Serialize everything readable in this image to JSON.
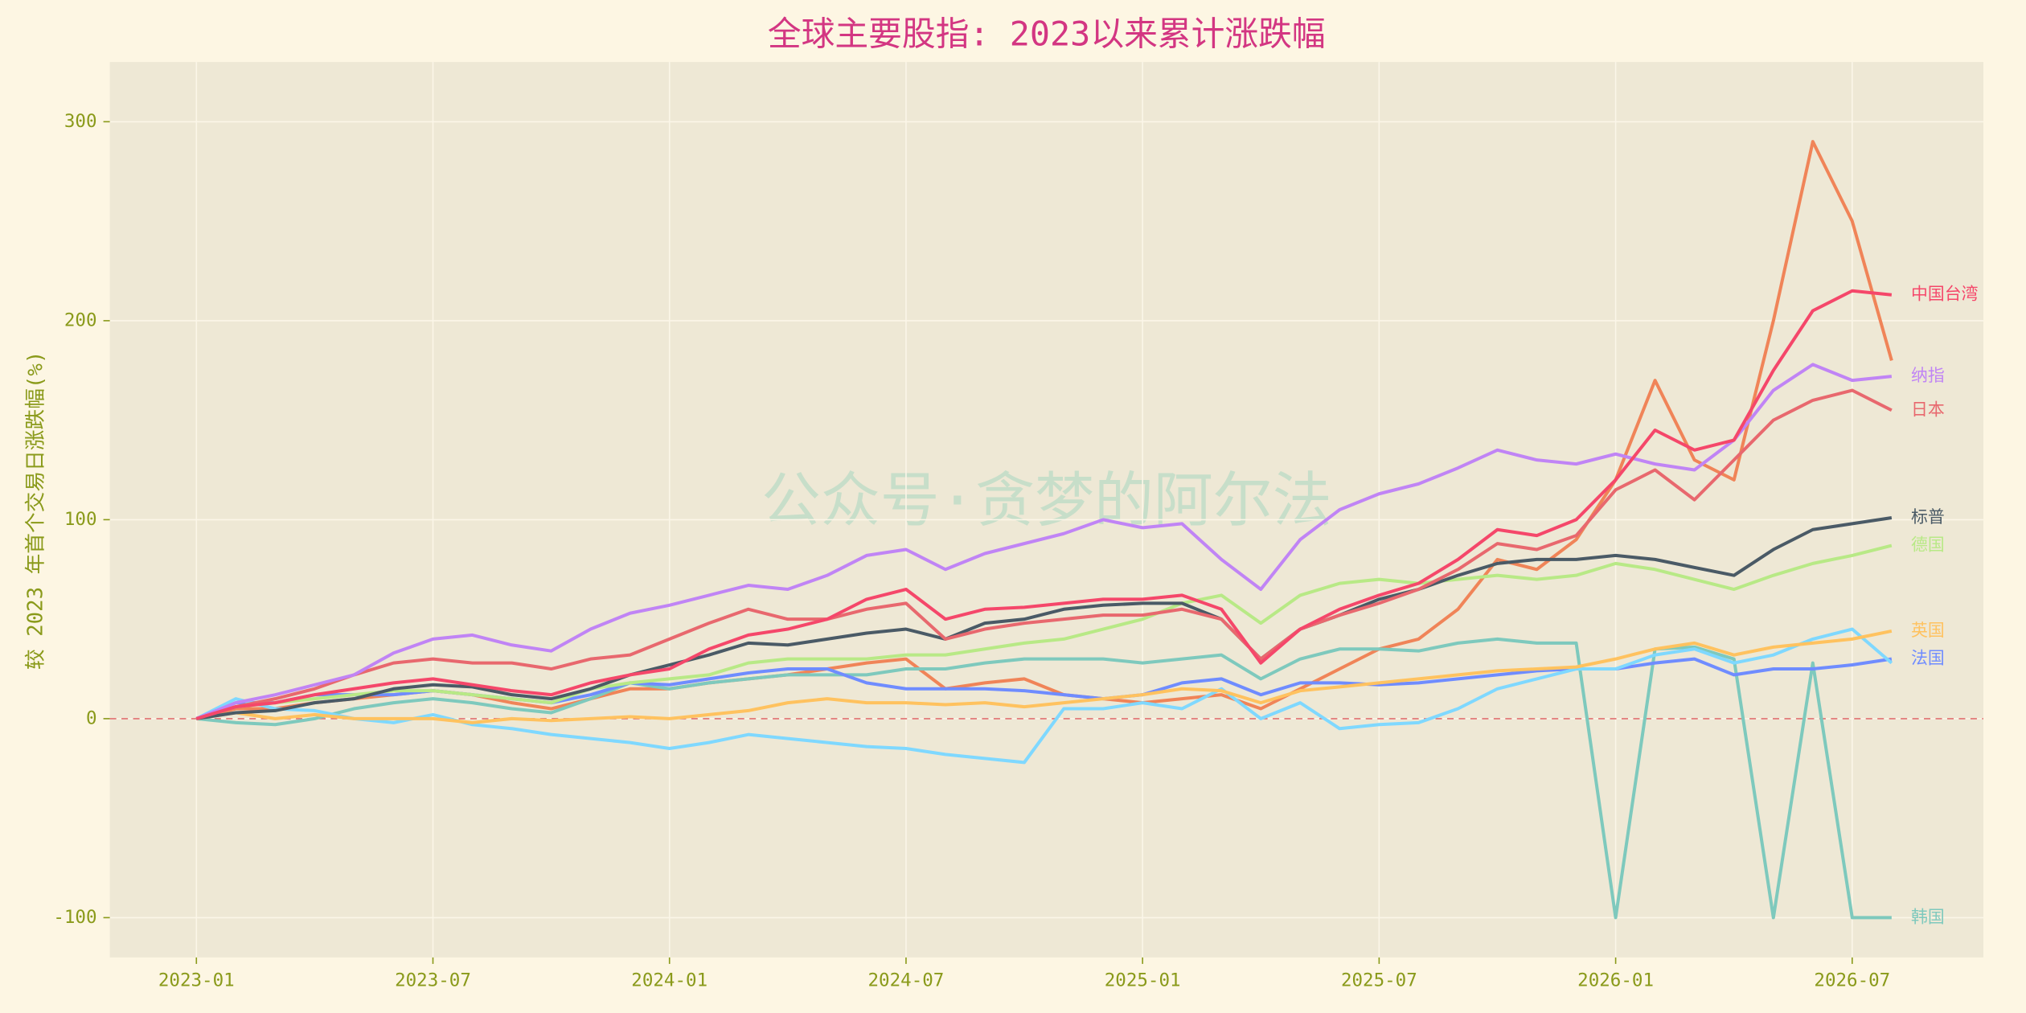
{
  "chart_data": {
    "type": "line",
    "title": "全球主要股指: 2023以来累计涨跌幅",
    "y_label": "较 2023 年首个交易日涨跌幅(%)",
    "watermark": "公众号·贪梦的阿尔法",
    "x": [
      "2023-01",
      "2023-02",
      "2023-03",
      "2023-04",
      "2023-05",
      "2023-06",
      "2023-07",
      "2023-08",
      "2023-09",
      "2023-10",
      "2023-11",
      "2023-12",
      "2024-01",
      "2024-02",
      "2024-03",
      "2024-04",
      "2024-05",
      "2024-06",
      "2024-07",
      "2024-08",
      "2024-09",
      "2024-10",
      "2024-11",
      "2024-12",
      "2025-01",
      "2025-02",
      "2025-03",
      "2025-04",
      "2025-05",
      "2025-06",
      "2025-07",
      "2025-08",
      "2025-09",
      "2025-10",
      "2025-11",
      "2025-12",
      "2026-01",
      "2026-02",
      "2026-03",
      "2026-04",
      "2026-05",
      "2026-06",
      "2026-07",
      "2026-08"
    ],
    "xticks": [
      "2023-01",
      "2023-07",
      "2024-01",
      "2024-07",
      "2025-01",
      "2025-07",
      "2026-01",
      "2026-07"
    ],
    "ylim": [
      -120,
      330
    ],
    "yticks": [
      -100,
      0,
      100,
      200,
      300
    ],
    "grid": true,
    "hline": 0,
    "series": [
      {
        "color": "#f08458",
        "values": [
          0,
          5,
          5,
          8,
          10,
          12,
          14,
          12,
          8,
          5,
          10,
          15,
          15,
          18,
          20,
          22,
          25,
          28,
          30,
          15,
          18,
          20,
          12,
          10,
          8,
          10,
          12,
          5,
          15,
          25,
          35,
          40,
          55,
          80,
          75,
          90,
          120,
          170,
          130,
          120,
          200,
          290,
          250,
          180
        ]
      },
      {
        "name": "韩国",
        "color": "#7ec9bd",
        "values": [
          0,
          -2,
          -3,
          0,
          5,
          8,
          10,
          8,
          5,
          3,
          10,
          18,
          15,
          18,
          20,
          22,
          22,
          22,
          25,
          25,
          28,
          30,
          30,
          30,
          28,
          30,
          32,
          20,
          30,
          35,
          35,
          34,
          38,
          40,
          38,
          38,
          -100,
          35,
          36,
          30,
          -100,
          28,
          -100,
          -100
        ]
      },
      {
        "name": "法国",
        "color": "#6f8cff",
        "values": [
          0,
          8,
          8,
          12,
          12,
          12,
          14,
          12,
          10,
          8,
          12,
          18,
          17,
          20,
          23,
          25,
          25,
          18,
          15,
          15,
          15,
          14,
          12,
          10,
          12,
          18,
          20,
          12,
          18,
          18,
          17,
          18,
          20,
          22,
          24,
          25,
          25,
          28,
          30,
          22,
          25,
          25,
          27,
          30
        ]
      },
      {
        "color": "#7fd8ff",
        "values": [
          0,
          10,
          5,
          4,
          0,
          -2,
          2,
          -3,
          -5,
          -8,
          -10,
          -12,
          -15,
          -12,
          -8,
          -10,
          -12,
          -14,
          -15,
          -18,
          -20,
          -22,
          5,
          5,
          8,
          5,
          15,
          0,
          8,
          -5,
          -3,
          -2,
          5,
          15,
          20,
          25,
          25,
          32,
          35,
          28,
          32,
          40,
          45,
          28
        ]
      },
      {
        "name": "英国",
        "color": "#ffc25f",
        "values": [
          0,
          3,
          0,
          2,
          0,
          0,
          0,
          -2,
          0,
          -1,
          0,
          1,
          0,
          2,
          4,
          8,
          10,
          8,
          8,
          7,
          8,
          6,
          8,
          10,
          12,
          15,
          14,
          8,
          14,
          16,
          18,
          20,
          22,
          24,
          25,
          26,
          30,
          35,
          38,
          32,
          36,
          38,
          40,
          44
        ]
      },
      {
        "name": "德国",
        "color": "#b8e986",
        "values": [
          0,
          6,
          8,
          10,
          12,
          14,
          14,
          12,
          10,
          8,
          15,
          18,
          20,
          22,
          28,
          30,
          30,
          30,
          32,
          32,
          35,
          38,
          40,
          45,
          50,
          58,
          62,
          48,
          62,
          68,
          70,
          68,
          70,
          72,
          70,
          72,
          78,
          75,
          70,
          65,
          72,
          78,
          82,
          87
        ]
      },
      {
        "name": "标普",
        "color": "#4a5a66",
        "values": [
          0,
          3,
          4,
          8,
          10,
          15,
          17,
          16,
          12,
          10,
          15,
          22,
          27,
          32,
          38,
          37,
          40,
          43,
          45,
          40,
          48,
          50,
          55,
          57,
          58,
          58,
          50,
          30,
          45,
          52,
          60,
          65,
          72,
          78,
          80,
          80,
          82,
          80,
          76,
          72,
          85,
          95,
          98,
          101
        ]
      },
      {
        "name": "日本",
        "color": "#e8686e",
        "values": [
          0,
          6,
          10,
          15,
          22,
          28,
          30,
          28,
          28,
          25,
          30,
          32,
          40,
          48,
          55,
          50,
          50,
          55,
          58,
          40,
          45,
          48,
          50,
          52,
          52,
          55,
          50,
          30,
          45,
          52,
          58,
          65,
          75,
          88,
          85,
          92,
          115,
          125,
          110,
          130,
          150,
          160,
          165,
          155
        ]
      },
      {
        "name": "纳指",
        "color": "#c084f5",
        "values": [
          0,
          8,
          12,
          17,
          22,
          33,
          40,
          42,
          37,
          34,
          45,
          53,
          57,
          62,
          67,
          65,
          72,
          82,
          85,
          75,
          83,
          88,
          93,
          100,
          96,
          98,
          80,
          65,
          90,
          105,
          113,
          118,
          126,
          135,
          130,
          128,
          133,
          128,
          125,
          140,
          165,
          178,
          170,
          172
        ]
      },
      {
        "name": "中国台湾",
        "color": "#f5476a",
        "values": [
          0,
          6,
          8,
          12,
          15,
          18,
          20,
          17,
          14,
          12,
          18,
          22,
          25,
          35,
          42,
          45,
          50,
          60,
          65,
          50,
          55,
          56,
          58,
          60,
          60,
          62,
          55,
          28,
          45,
          55,
          62,
          68,
          80,
          95,
          92,
          100,
          120,
          145,
          135,
          140,
          175,
          205,
          215,
          213
        ]
      }
    ]
  }
}
